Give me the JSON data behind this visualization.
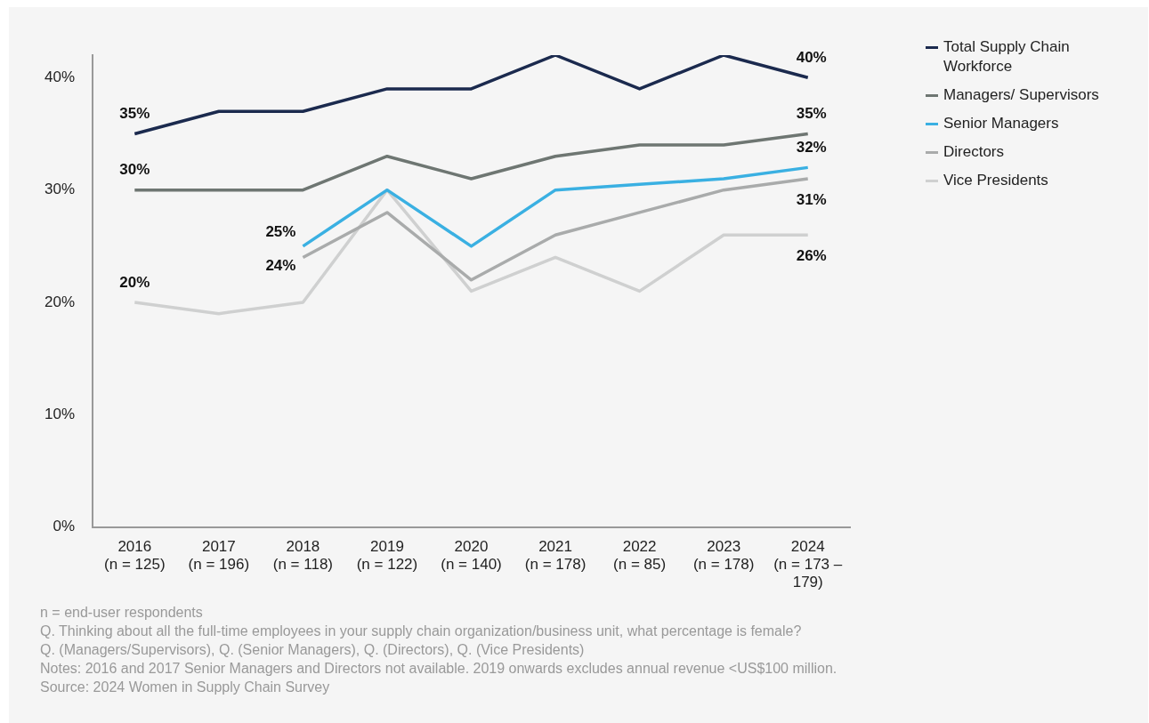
{
  "chart_data": {
    "type": "line",
    "categories": [
      "2016 (n = 125)",
      "2017 (n = 196)",
      "2018 (n = 118)",
      "2019 (n = 122)",
      "2020 (n = 140)",
      "2021 (n = 178)",
      "2022 (n = 85)",
      "2023 (n = 178)",
      "2024 (n = 173 – 179)"
    ],
    "series": [
      {
        "name": "Total Supply Chain Workforce",
        "color": "#1b2a4e",
        "values": [
          35,
          37,
          37,
          39,
          39,
          42,
          39,
          42,
          40
        ],
        "value_labels": [
          "35%",
          null,
          null,
          null,
          null,
          null,
          null,
          null,
          "40%"
        ]
      },
      {
        "name": "Managers/ Supervisors",
        "color": "#6e7672",
        "values": [
          30,
          30,
          30,
          33,
          31,
          33,
          34,
          34,
          35
        ],
        "value_labels": [
          "30%",
          null,
          null,
          null,
          null,
          null,
          null,
          null,
          "35%"
        ]
      },
      {
        "name": "Senior Managers",
        "color": "#3ab0e2",
        "values": [
          null,
          null,
          25,
          30,
          25,
          30,
          30.5,
          31,
          32
        ],
        "value_labels": [
          null,
          null,
          "25%",
          null,
          null,
          null,
          null,
          null,
          "32%"
        ]
      },
      {
        "name": "Directors",
        "color": "#a9abab",
        "values": [
          null,
          null,
          24,
          28,
          22,
          26,
          28,
          30,
          31
        ],
        "value_labels": [
          null,
          null,
          "24%",
          null,
          null,
          null,
          null,
          null,
          "31%"
        ]
      },
      {
        "name": "Vice Presidents",
        "color": "#cfd0d0",
        "values": [
          20,
          19,
          20,
          30,
          21,
          24,
          21,
          26,
          26
        ],
        "value_labels": [
          "20%",
          null,
          null,
          null,
          null,
          null,
          null,
          null,
          "26%"
        ]
      }
    ],
    "ylim": [
      0,
      42
    ],
    "yticks": [
      {
        "value": 0,
        "label": "0%"
      },
      {
        "value": 10,
        "label": "10%"
      },
      {
        "value": 20,
        "label": "20%"
      },
      {
        "value": 30,
        "label": "30%"
      },
      {
        "value": 40,
        "label": "40%"
      }
    ],
    "grid": false,
    "legend": "right",
    "marker": "none",
    "line_style": "solid",
    "annotations": [
      "n = end-user respondents",
      "Q. Thinking about all the full-time employees in your supply chain organization/business unit, what percentage is female?",
      "Q. (Managers/Supervisors), Q. (Senior Managers), Q. (Directors), Q. (Vice Presidents)",
      "Notes: 2016 and 2017 Senior Managers and Directors not available. 2019 onwards excludes annual revenue <US$100 million.",
      "Source: 2024 Women in Supply Chain Survey"
    ]
  }
}
